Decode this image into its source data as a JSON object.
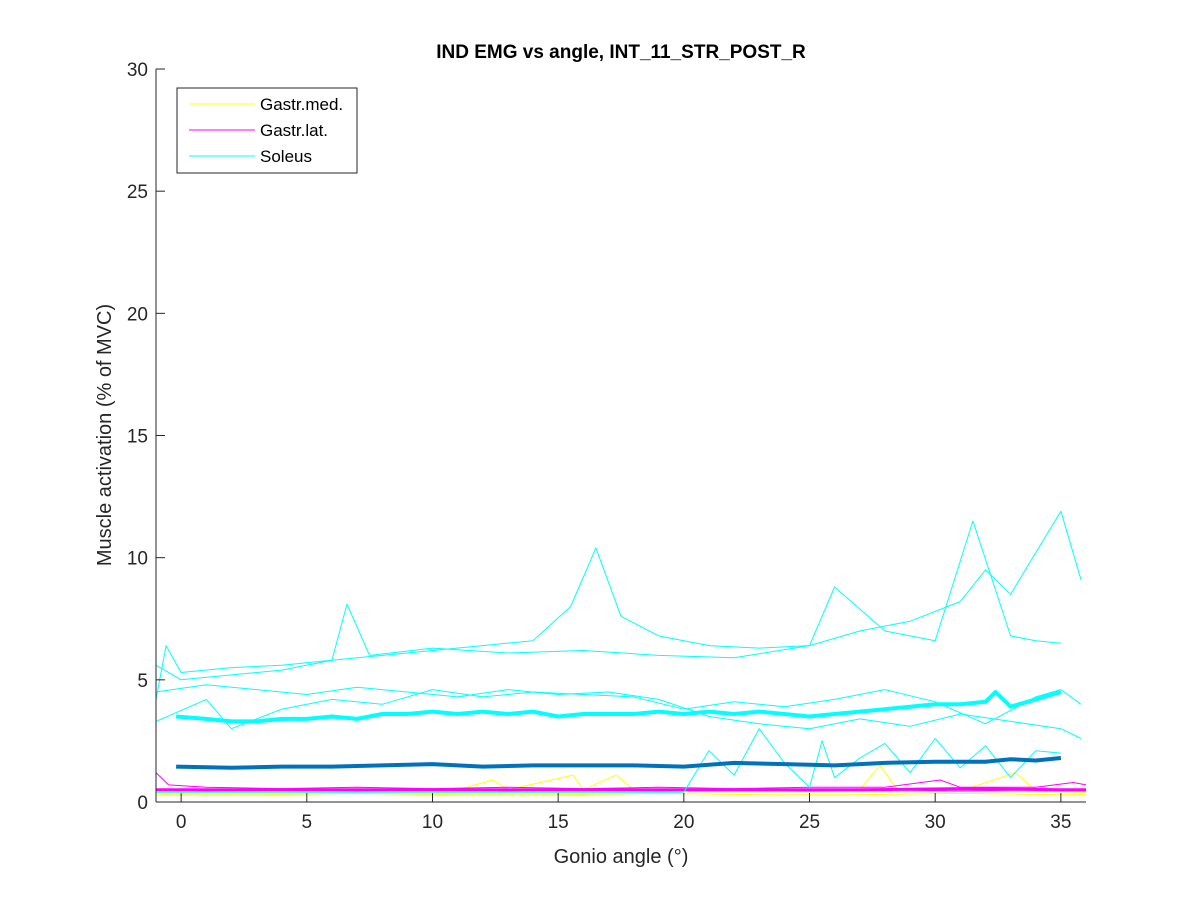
{
  "chart_data": {
    "type": "line",
    "title": "IND EMG vs angle, INT_11_STR_POST_R",
    "xlabel": "Gonio angle (°)",
    "ylabel": "Muscle activation (% of MVC)",
    "xlim": [
      -1,
      36
    ],
    "ylim": [
      0,
      30
    ],
    "xticks": [
      0,
      5,
      10,
      15,
      20,
      25,
      30,
      35
    ],
    "yticks": [
      0,
      5,
      10,
      15,
      20,
      25,
      30
    ],
    "grid": false,
    "legend_position": "top-left",
    "legend": [
      {
        "label": "Gastr.med.",
        "color": "#FFFF00"
      },
      {
        "label": "Gastr.lat.",
        "color": "#FF00FF"
      },
      {
        "label": "Soleus",
        "color": "#00FFFF"
      }
    ],
    "series": [
      {
        "group": "Gastr.med.",
        "color": "#FFFF00",
        "width": 1,
        "x": [
          -1,
          2,
          5,
          8,
          11,
          12.4,
          13,
          15.6,
          16,
          17.3,
          18,
          21,
          24,
          27,
          27.8,
          28.5,
          31,
          33.2,
          34,
          36
        ],
        "y": [
          0.5,
          0.45,
          0.5,
          0.45,
          0.5,
          0.9,
          0.5,
          1.1,
          0.5,
          1.1,
          0.5,
          0.45,
          0.5,
          0.5,
          1.5,
          0.5,
          0.45,
          1.2,
          0.45,
          0.4
        ]
      },
      {
        "group": "Gastr.med.",
        "color": "#FFFF00",
        "width": 1,
        "x": [
          -1,
          3,
          7,
          11,
          15,
          19,
          23,
          27,
          31,
          35,
          36
        ],
        "y": [
          0.3,
          0.3,
          0.35,
          0.3,
          0.3,
          0.35,
          0.3,
          0.3,
          0.35,
          0.3,
          0.3
        ]
      },
      {
        "group": "Gastr.lat.",
        "color": "#FF00FF",
        "width": 1,
        "x": [
          -1,
          -0.5,
          1,
          4,
          7,
          10,
          13,
          16,
          19,
          22,
          25,
          28,
          30.2,
          31,
          34,
          35.5,
          36
        ],
        "y": [
          1.2,
          0.7,
          0.6,
          0.55,
          0.6,
          0.55,
          0.6,
          0.55,
          0.6,
          0.55,
          0.6,
          0.6,
          0.9,
          0.6,
          0.6,
          0.8,
          0.7
        ]
      },
      {
        "group": "Gastr.lat.",
        "color": "#FF00FF",
        "width": 1,
        "x": [
          -1,
          1,
          4,
          7,
          10,
          13,
          16,
          19,
          22,
          25,
          28,
          31,
          34,
          36
        ],
        "y": [
          0.5,
          0.45,
          0.5,
          0.45,
          0.5,
          0.45,
          0.5,
          0.45,
          0.5,
          0.45,
          0.5,
          0.45,
          0.5,
          0.45
        ]
      },
      {
        "group": "Gastr.lat.",
        "color": "#FF00FF",
        "width": 3,
        "x": [
          -1,
          3,
          7,
          11,
          15,
          19,
          23,
          27,
          31,
          35,
          36
        ],
        "y": [
          0.5,
          0.5,
          0.5,
          0.5,
          0.5,
          0.5,
          0.5,
          0.5,
          0.55,
          0.5,
          0.5
        ]
      },
      {
        "group": "Soleus",
        "color": "#00FFFF",
        "width": 1,
        "x": [
          -1,
          -0.6,
          0,
          2,
          4,
          6,
          8,
          10,
          12,
          14,
          15.5,
          16.5,
          17.5,
          19,
          21,
          23,
          25,
          27,
          29,
          31,
          32,
          33,
          34,
          35,
          35.8
        ],
        "y": [
          4.2,
          6.4,
          5.3,
          5.5,
          5.6,
          5.8,
          6.0,
          6.2,
          6.4,
          6.6,
          8.0,
          10.4,
          7.6,
          6.8,
          6.4,
          6.3,
          6.4,
          7.0,
          7.4,
          8.2,
          9.5,
          8.5,
          10.2,
          11.9,
          9.1
        ]
      },
      {
        "group": "Soleus",
        "color": "#00FFFF",
        "width": 1,
        "x": [
          -1,
          0,
          2,
          4,
          6,
          6.6,
          7.5,
          10,
          13,
          16,
          19,
          22,
          25,
          26,
          28,
          30,
          31.5,
          33,
          34,
          35
        ],
        "y": [
          5.6,
          5.0,
          5.2,
          5.4,
          5.8,
          8.1,
          6.0,
          6.3,
          6.1,
          6.2,
          6.0,
          5.9,
          6.4,
          8.8,
          7.0,
          6.6,
          11.5,
          6.8,
          6.6,
          6.5
        ]
      },
      {
        "group": "Soleus",
        "color": "#00FFFF",
        "width": 1,
        "x": [
          -1,
          1,
          2,
          4,
          6,
          8,
          10,
          12,
          14,
          16,
          18,
          20,
          22,
          24,
          26,
          28,
          30,
          32,
          34,
          35,
          35.8
        ],
        "y": [
          3.3,
          4.2,
          3.0,
          3.8,
          4.2,
          4.0,
          4.6,
          4.3,
          4.5,
          4.4,
          4.3,
          3.8,
          4.1,
          3.9,
          4.2,
          4.6,
          4.1,
          3.2,
          4.3,
          4.6,
          4.0
        ]
      },
      {
        "group": "Soleus",
        "color": "#00FFFF",
        "width": 1,
        "x": [
          -1,
          1,
          3,
          5,
          7,
          9,
          11,
          13,
          15,
          17,
          19,
          21,
          23,
          25,
          27,
          29,
          31,
          33,
          35,
          35.8
        ],
        "y": [
          4.5,
          4.8,
          4.6,
          4.4,
          4.7,
          4.5,
          4.3,
          4.6,
          4.4,
          4.5,
          4.2,
          3.5,
          3.2,
          3.0,
          3.4,
          3.1,
          3.6,
          3.3,
          3.0,
          2.6
        ]
      },
      {
        "group": "Soleus",
        "color": "#00FFFF",
        "width": 1,
        "x": [
          -1,
          2,
          5,
          8,
          11,
          14,
          17,
          20,
          21,
          22,
          23,
          24,
          25,
          25.5,
          26,
          27,
          28,
          29,
          30,
          31,
          32,
          33,
          34,
          35
        ],
        "y": [
          0.4,
          0.4,
          0.4,
          0.4,
          0.4,
          0.4,
          0.4,
          0.4,
          2.1,
          1.1,
          3.0,
          1.6,
          0.6,
          2.5,
          1.0,
          1.8,
          2.4,
          1.2,
          2.6,
          1.4,
          2.3,
          1.0,
          2.1,
          2.0
        ]
      },
      {
        "group": "Soleus",
        "color": "#00FFFF",
        "width": 4,
        "x": [
          -0.2,
          1,
          2,
          3,
          4,
          5,
          6,
          7,
          8,
          9,
          10,
          11,
          12,
          13,
          14,
          15,
          16,
          17,
          18,
          19,
          20,
          21,
          22,
          23,
          24,
          25,
          26,
          27,
          28,
          29,
          30,
          31,
          32,
          32.4,
          33,
          34,
          35
        ],
        "y": [
          3.5,
          3.4,
          3.3,
          3.3,
          3.4,
          3.4,
          3.5,
          3.4,
          3.6,
          3.6,
          3.7,
          3.6,
          3.7,
          3.6,
          3.7,
          3.5,
          3.6,
          3.6,
          3.6,
          3.7,
          3.6,
          3.7,
          3.6,
          3.7,
          3.6,
          3.5,
          3.6,
          3.7,
          3.8,
          3.9,
          4.0,
          4.0,
          4.1,
          4.5,
          3.9,
          4.2,
          4.5
        ]
      },
      {
        "group": "Mean",
        "color": "#0072BD",
        "width": 4,
        "x": [
          -0.2,
          2,
          4,
          6,
          8,
          10,
          12,
          14,
          16,
          18,
          20,
          22,
          24,
          26,
          28,
          30,
          32,
          33,
          34,
          35
        ],
        "y": [
          1.45,
          1.4,
          1.45,
          1.45,
          1.5,
          1.55,
          1.45,
          1.5,
          1.5,
          1.5,
          1.45,
          1.6,
          1.55,
          1.5,
          1.6,
          1.65,
          1.65,
          1.75,
          1.7,
          1.8
        ]
      }
    ]
  }
}
